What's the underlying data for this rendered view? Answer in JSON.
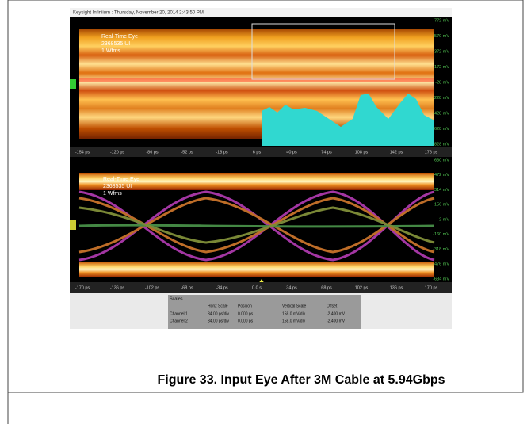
{
  "header": "Keysight Infiniium : Thursday, November 20, 2014 2:43:50 PM",
  "top_panel": {
    "legend": [
      "Real-Time Eye",
      "2368535 UI",
      "1 Wfms"
    ],
    "y_labels": [
      "772 mV",
      "570 mV",
      "372 mV",
      "172 mV",
      "-28 mV",
      "-228 mV",
      "-428 mV",
      "-628 mV",
      "-828 mV"
    ],
    "x_labels": [
      "-154 ps",
      "-120 ps",
      "-86 ps",
      "-52 ps",
      "-18 ps",
      "6 ps",
      "40 ps",
      "74 ps",
      "108 ps",
      "142 ps",
      "176 ps"
    ]
  },
  "bottom_panel": {
    "legend": [
      "Real-Time Eye",
      "2368535 UI",
      "1 Wfms"
    ],
    "y_labels": [
      "630 mV",
      "472 mV",
      "314 mV",
      "156 mV",
      "-2 mV",
      "-160 mV",
      "-318 mV",
      "-476 mV",
      "-634 mV"
    ],
    "x_labels": [
      "-170 ps",
      "-136 ps",
      "-102 ps",
      "-68 ps",
      "-34 ps",
      "0.0 s",
      "34 ps",
      "68 ps",
      "102 ps",
      "136 ps",
      "170 ps"
    ]
  },
  "table": {
    "title": "Scales",
    "header": [
      "",
      "Horiz Scale",
      "Position",
      "Vertical Scale",
      "Offset"
    ],
    "rows": [
      [
        "Channel 1",
        "34.00 ps/div",
        "0.000 ps",
        "158.0 mV/div",
        "-2.400 mV"
      ],
      [
        "Channel 2",
        "34.00 ps/div",
        "0.000 ps",
        "158.0 mV/div",
        "-2.400 mV"
      ]
    ]
  },
  "caption": "Figure 33. Input Eye After 3M Cable at 5.94Gbps"
}
